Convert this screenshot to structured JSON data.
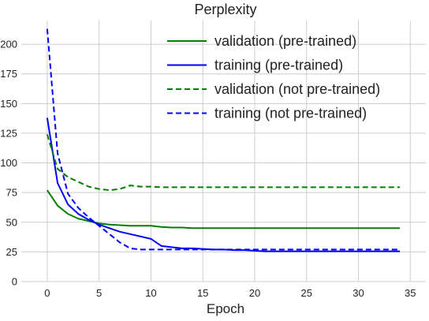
{
  "chart_data": {
    "type": "line",
    "title": "Perplexity",
    "xlabel": "Epoch",
    "ylabel": "",
    "xlim": [
      -2.5,
      36.5
    ],
    "ylim": [
      0,
      220
    ],
    "xticks": [
      0,
      5,
      10,
      15,
      20,
      25,
      30,
      35
    ],
    "yticks": [
      0,
      25,
      50,
      75,
      100,
      125,
      150,
      175,
      200
    ],
    "grid": true,
    "legend_position": "top-right",
    "series": [
      {
        "name": "validation (pre-trained)",
        "color": "#008000",
        "line_style": "solid",
        "x": [
          0,
          1,
          2,
          3,
          4,
          5,
          6,
          7,
          8,
          9,
          10,
          11,
          12,
          13,
          14,
          15,
          16,
          17,
          18,
          19,
          20,
          21,
          22,
          23,
          24,
          25,
          26,
          27,
          28,
          29,
          30,
          31,
          32,
          33,
          34
        ],
        "values": [
          77,
          64,
          57,
          53,
          51,
          49,
          48,
          47.5,
          47,
          47,
          47,
          46,
          45.5,
          45.5,
          45,
          45,
          45,
          45,
          45,
          45,
          45,
          45,
          45,
          45,
          45,
          45,
          45,
          45,
          45,
          45,
          45,
          45,
          45,
          45,
          45
        ]
      },
      {
        "name": "training (pre-trained)",
        "color": "#0000ff",
        "line_style": "solid",
        "x": [
          0,
          1,
          2,
          3,
          4,
          5,
          6,
          7,
          8,
          9,
          10,
          11,
          12,
          13,
          14,
          15,
          16,
          17,
          18,
          19,
          20,
          21,
          22,
          23,
          24,
          25,
          26,
          27,
          28,
          29,
          30,
          31,
          32,
          33,
          34
        ],
        "values": [
          138,
          83,
          65,
          57,
          52,
          48,
          45,
          42,
          40,
          38,
          36,
          30,
          29,
          28,
          28,
          27.5,
          27,
          27,
          26.5,
          26.5,
          26,
          25.5,
          25.5,
          25.5,
          25.5,
          25.5,
          25.5,
          25.5,
          25.5,
          25.5,
          25.5,
          25.5,
          25.5,
          25.5,
          25.5
        ]
      },
      {
        "name": "validation (not pre-trained)",
        "color": "#008000",
        "line_style": "dashed",
        "x": [
          0,
          1,
          2,
          3,
          4,
          5,
          6,
          7,
          8,
          9,
          10,
          11,
          12,
          13,
          14,
          15,
          16,
          17,
          18,
          19,
          20,
          21,
          22,
          23,
          24,
          25,
          26,
          27,
          28,
          29,
          30,
          31,
          32,
          33,
          34
        ],
        "values": [
          124,
          95,
          88,
          84,
          80,
          78,
          77,
          78,
          81,
          80,
          80,
          79.5,
          79.5,
          79.5,
          79.5,
          79.5,
          79.5,
          79.5,
          79.5,
          79.5,
          79.5,
          79.5,
          79.5,
          79.5,
          79.5,
          79.5,
          79.5,
          79.5,
          79.5,
          79.5,
          79.5,
          79.5,
          79.5,
          79.5,
          79.5
        ]
      },
      {
        "name": "training (not pre-trained)",
        "color": "#0000ff",
        "line_style": "dashed",
        "x": [
          0,
          1,
          2,
          3,
          4,
          5,
          6,
          7,
          8,
          9,
          10,
          11,
          12,
          13,
          14,
          15,
          16,
          17,
          18,
          19,
          20,
          21,
          22,
          23,
          24,
          25,
          26,
          27,
          28,
          29,
          30,
          31,
          32,
          33,
          34
        ],
        "values": [
          213,
          108,
          74,
          62,
          54,
          47,
          40,
          33,
          28,
          27,
          27,
          27,
          27,
          27,
          27,
          27,
          27,
          27,
          27,
          27,
          27,
          27,
          27,
          27,
          27,
          27,
          27,
          27,
          27,
          27,
          27,
          27,
          27,
          27,
          27
        ]
      }
    ]
  }
}
